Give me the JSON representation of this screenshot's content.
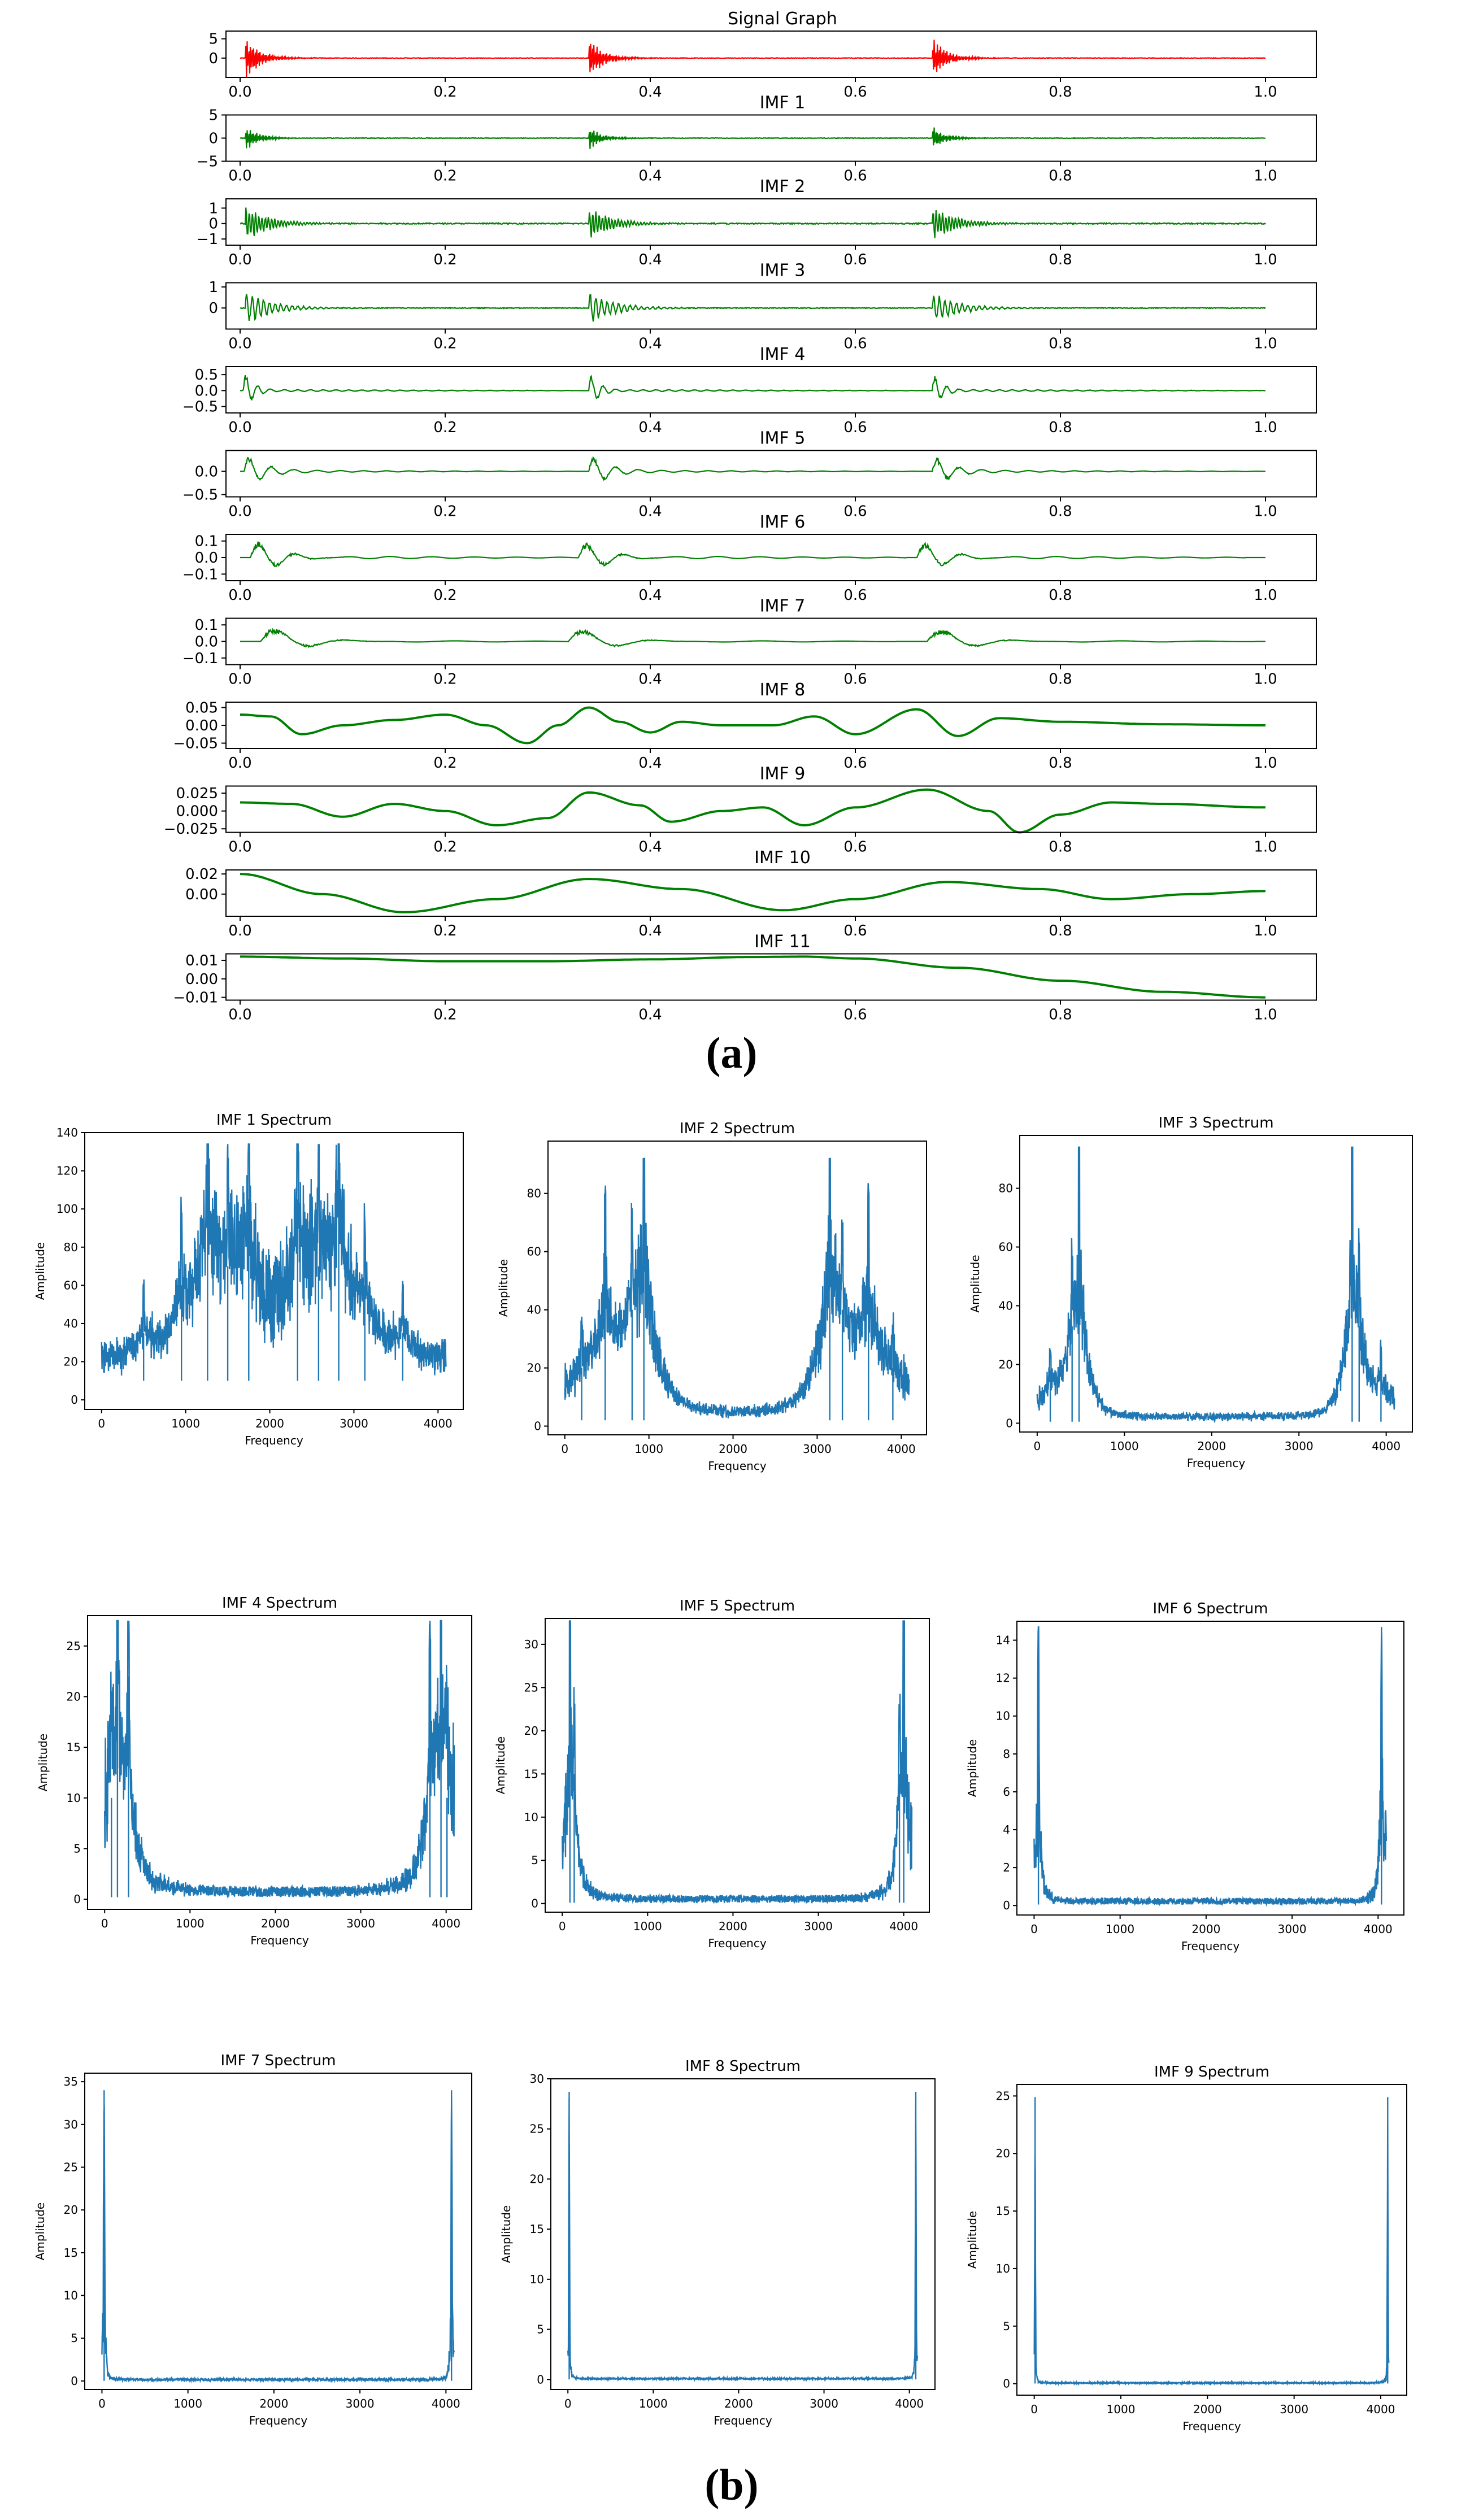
{
  "figure": {
    "caption_a": "(a)",
    "caption_b": "(b)"
  },
  "colors": {
    "signal": "#ff0000",
    "imf": "#008000",
    "spectrum": "#1f77b4",
    "axis": "#000000"
  },
  "chart_data": [
    {
      "type": "line",
      "title": "Signal Graph",
      "color": "signal",
      "xlim": [
        0.0,
        1.0
      ],
      "ylim": [
        -5,
        7
      ],
      "xticks": [
        "0.0",
        "0.2",
        "0.4",
        "0.6",
        "0.8",
        "1.0"
      ],
      "yticks": [
        {
          "v": 5,
          "l": "5"
        },
        {
          "v": 0,
          "l": "0"
        }
      ],
      "bursts": [
        0.005,
        0.34,
        0.675
      ],
      "peak": 6.5,
      "decay": 0.014,
      "freq": 640,
      "noise": 0.15
    },
    {
      "type": "line",
      "title": "IMF 1",
      "color": "imf",
      "xlim": [
        0.0,
        1.0
      ],
      "ylim": [
        -5,
        5
      ],
      "xticks": [
        "0.0",
        "0.2",
        "0.4",
        "0.6",
        "0.8",
        "1.0"
      ],
      "yticks": [
        {
          "v": 5,
          "l": "5"
        },
        {
          "v": 0,
          "l": "0"
        },
        {
          "v": -5,
          "l": "−5"
        }
      ],
      "bursts": [
        0.005,
        0.34,
        0.675
      ],
      "peak": 3.2,
      "decay": 0.012,
      "freq": 640,
      "noise": 0.12
    },
    {
      "type": "line",
      "title": "IMF 2",
      "color": "imf",
      "xlim": [
        0.0,
        1.0
      ],
      "ylim": [
        -1.4,
        1.6
      ],
      "xticks": [
        "0.0",
        "0.2",
        "0.4",
        "0.6",
        "0.8",
        "1.0"
      ],
      "yticks": [
        {
          "v": 1,
          "l": "1"
        },
        {
          "v": 0,
          "l": "0"
        },
        {
          "v": -1,
          "l": "−1"
        }
      ],
      "bursts": [
        0.005,
        0.34,
        0.675
      ],
      "peak": 1.3,
      "decay": 0.022,
      "freq": 320,
      "noise": 0.08
    },
    {
      "type": "line",
      "title": "IMF 3",
      "color": "imf",
      "xlim": [
        0.0,
        1.0
      ],
      "ylim": [
        -1.0,
        1.2
      ],
      "xticks": [
        "0.0",
        "0.2",
        "0.4",
        "0.6",
        "0.8",
        "1.0"
      ],
      "yticks": [
        {
          "v": 1,
          "l": "1"
        },
        {
          "v": 0,
          "l": "0"
        }
      ],
      "bursts": [
        0.005,
        0.34,
        0.675
      ],
      "peak": 0.9,
      "decay": 0.025,
      "freq": 180,
      "noise": 0.04
    },
    {
      "type": "line",
      "title": "IMF 4",
      "color": "imf",
      "xlim": [
        0.0,
        1.0
      ],
      "ylim": [
        -0.7,
        0.75
      ],
      "xticks": [
        "0.0",
        "0.2",
        "0.4",
        "0.6",
        "0.8",
        "1.0"
      ],
      "yticks": [
        {
          "v": 0.5,
          "l": "0.5"
        },
        {
          "v": 0.0,
          "l": "0.0"
        },
        {
          "v": -0.5,
          "l": "−0.5"
        }
      ],
      "bursts": [
        0.003,
        0.34,
        0.675
      ],
      "peak": 0.65,
      "decay": 0.01,
      "freq": 90,
      "noise": 0.01,
      "ripple": 0.04,
      "ripple_freq": 80
    },
    {
      "type": "line",
      "title": "IMF 5",
      "color": "imf",
      "xlim": [
        0.0,
        1.0
      ],
      "ylim": [
        -0.55,
        0.45
      ],
      "xticks": [
        "0.0",
        "0.2",
        "0.4",
        "0.6",
        "0.8",
        "1.0"
      ],
      "yticks": [
        {
          "v": 0.0,
          "l": "0.0"
        },
        {
          "v": -0.5,
          "l": "−0.5"
        }
      ],
      "bursts": [
        0.004,
        0.34,
        0.675
      ],
      "peak": 0.4,
      "decay": 0.018,
      "freq": 48,
      "noise": 0.0,
      "ripple": 0.03,
      "ripple_freq": 45
    },
    {
      "type": "line",
      "title": "IMF 6",
      "color": "imf",
      "xlim": [
        0.0,
        1.0
      ],
      "ylim": [
        -0.14,
        0.14
      ],
      "xticks": [
        "0.0",
        "0.2",
        "0.4",
        "0.6",
        "0.8",
        "1.0"
      ],
      "yticks": [
        {
          "v": 0.1,
          "l": "0.1"
        },
        {
          "v": 0.0,
          "l": "0.0"
        },
        {
          "v": -0.1,
          "l": "−0.1"
        }
      ],
      "bursts": [
        0.01,
        0.33,
        0.66
      ],
      "peak": 0.11,
      "decay": 0.03,
      "freq": 30,
      "noise": 0.0,
      "ripple": 0.015,
      "ripple_freq": 24
    },
    {
      "type": "line",
      "title": "IMF 7",
      "color": "imf",
      "xlim": [
        0.0,
        1.0
      ],
      "ylim": [
        -0.14,
        0.14
      ],
      "xticks": [
        "0.0",
        "0.2",
        "0.4",
        "0.6",
        "0.8",
        "1.0"
      ],
      "yticks": [
        {
          "v": 0.1,
          "l": "0.1"
        },
        {
          "v": 0.0,
          "l": "0.0"
        },
        {
          "v": -0.1,
          "l": "−0.1"
        }
      ],
      "bursts": [
        0.02,
        0.32,
        0.67
      ],
      "peak": 0.1,
      "decay": 0.04,
      "freq": 16,
      "noise": 0.0,
      "ripple": 0.012,
      "ripple_freq": 12
    },
    {
      "type": "line",
      "title": "IMF 8",
      "color": "imf",
      "xlim": [
        0.0,
        1.0
      ],
      "ylim": [
        -0.065,
        0.065
      ],
      "xticks": [
        "0.0",
        "0.2",
        "0.4",
        "0.6",
        "0.8",
        "1.0"
      ],
      "yticks": [
        {
          "v": 0.05,
          "l": "0.05"
        },
        {
          "v": 0.0,
          "l": "0.00"
        },
        {
          "v": -0.05,
          "l": "−0.05"
        }
      ],
      "points": [
        [
          0.0,
          0.03
        ],
        [
          0.03,
          0.025
        ],
        [
          0.06,
          -0.025
        ],
        [
          0.1,
          0.0
        ],
        [
          0.15,
          0.015
        ],
        [
          0.2,
          0.03
        ],
        [
          0.24,
          0.0
        ],
        [
          0.28,
          -0.05
        ],
        [
          0.31,
          0.0
        ],
        [
          0.34,
          0.05
        ],
        [
          0.37,
          0.01
        ],
        [
          0.4,
          -0.02
        ],
        [
          0.43,
          0.01
        ],
        [
          0.47,
          0.0
        ],
        [
          0.52,
          0.0
        ],
        [
          0.56,
          0.025
        ],
        [
          0.6,
          -0.025
        ],
        [
          0.66,
          0.045
        ],
        [
          0.7,
          -0.03
        ],
        [
          0.74,
          0.02
        ],
        [
          0.8,
          0.01
        ],
        [
          0.9,
          0.003
        ],
        [
          1.0,
          0.0
        ]
      ]
    },
    {
      "type": "line",
      "title": "IMF 9",
      "color": "imf",
      "xlim": [
        0.0,
        1.0
      ],
      "ylim": [
        -0.03,
        0.035
      ],
      "xticks": [
        "0.0",
        "0.2",
        "0.4",
        "0.6",
        "0.8",
        "1.0"
      ],
      "yticks": [
        {
          "v": 0.025,
          "l": "0.025"
        },
        {
          "v": 0.0,
          "l": "0.000"
        },
        {
          "v": -0.025,
          "l": "−0.025"
        }
      ],
      "points": [
        [
          0.0,
          0.012
        ],
        [
          0.05,
          0.01
        ],
        [
          0.1,
          -0.008
        ],
        [
          0.15,
          0.01
        ],
        [
          0.2,
          0.0
        ],
        [
          0.25,
          -0.02
        ],
        [
          0.3,
          -0.01
        ],
        [
          0.34,
          0.026
        ],
        [
          0.39,
          0.008
        ],
        [
          0.42,
          -0.015
        ],
        [
          0.47,
          0.0
        ],
        [
          0.51,
          0.005
        ],
        [
          0.55,
          -0.02
        ],
        [
          0.6,
          0.005
        ],
        [
          0.67,
          0.03
        ],
        [
          0.73,
          0.0
        ],
        [
          0.76,
          -0.03
        ],
        [
          0.8,
          -0.005
        ],
        [
          0.85,
          0.012
        ],
        [
          0.9,
          0.01
        ],
        [
          1.0,
          0.005
        ]
      ]
    },
    {
      "type": "line",
      "title": "IMF 10",
      "color": "imf",
      "xlim": [
        0.0,
        1.0
      ],
      "ylim": [
        -0.022,
        0.024
      ],
      "xticks": [
        "0.0",
        "0.2",
        "0.4",
        "0.6",
        "0.8",
        "1.0"
      ],
      "yticks": [
        {
          "v": 0.02,
          "l": "0.02"
        },
        {
          "v": 0.0,
          "l": "0.00"
        }
      ],
      "points": [
        [
          0.0,
          0.02
        ],
        [
          0.08,
          0.0
        ],
        [
          0.16,
          -0.018
        ],
        [
          0.25,
          -0.005
        ],
        [
          0.34,
          0.015
        ],
        [
          0.43,
          0.005
        ],
        [
          0.53,
          -0.016
        ],
        [
          0.6,
          -0.005
        ],
        [
          0.69,
          0.012
        ],
        [
          0.78,
          0.005
        ],
        [
          0.85,
          -0.005
        ],
        [
          0.93,
          0.0
        ],
        [
          1.0,
          0.003
        ]
      ]
    },
    {
      "type": "line",
      "title": "IMF 11",
      "color": "imf",
      "xlim": [
        0.0,
        1.0
      ],
      "ylim": [
        -0.0115,
        0.0135
      ],
      "xticks": [
        "0.0",
        "0.2",
        "0.4",
        "0.6",
        "0.8",
        "1.0"
      ],
      "yticks": [
        {
          "v": 0.01,
          "l": "0.01"
        },
        {
          "v": 0.0,
          "l": "0.00"
        },
        {
          "v": -0.01,
          "l": "−0.01"
        }
      ],
      "points": [
        [
          0.0,
          0.012
        ],
        [
          0.1,
          0.011
        ],
        [
          0.2,
          0.0095
        ],
        [
          0.3,
          0.0095
        ],
        [
          0.4,
          0.0105
        ],
        [
          0.5,
          0.0118
        ],
        [
          0.55,
          0.012
        ],
        [
          0.6,
          0.011
        ],
        [
          0.7,
          0.006
        ],
        [
          0.8,
          -0.001
        ],
        [
          0.9,
          -0.007
        ],
        [
          1.0,
          -0.01
        ]
      ]
    },
    {
      "type": "line",
      "title": "IMF 1 Spectrum",
      "xlabel": "Frequency",
      "ylabel": "Amplitude",
      "xlim": [
        -200,
        4300
      ],
      "ylim": [
        -5,
        140
      ],
      "xticks": [
        0,
        1000,
        2000,
        3000,
        4000
      ],
      "yticks": [
        0,
        20,
        40,
        60,
        80,
        100,
        120,
        140
      ],
      "base": 10,
      "peaks": [
        [
          1260,
          134
        ],
        [
          2820,
          134
        ],
        [
          1750,
          105
        ],
        [
          2330,
          105
        ],
        [
          1500,
          70
        ],
        [
          2580,
          70
        ],
        [
          950,
          60
        ],
        [
          3130,
          60
        ],
        [
          500,
          35
        ],
        [
          3580,
          35
        ]
      ],
      "peak_width": 300,
      "noise": 14
    },
    {
      "type": "line",
      "title": "IMF 2 Spectrum",
      "xlabel": "Frequency",
      "ylabel": "Amplitude",
      "xlim": [
        -200,
        4300
      ],
      "ylim": [
        -3,
        98
      ],
      "xticks": [
        0,
        1000,
        2000,
        3000,
        4000
      ],
      "yticks": [
        0,
        20,
        40,
        60,
        80
      ],
      "base": 2,
      "peaks": [
        [
          940,
          92
        ],
        [
          3150,
          92
        ],
        [
          480,
          68
        ],
        [
          3610,
          68
        ],
        [
          800,
          40
        ],
        [
          3300,
          40
        ],
        [
          200,
          20
        ],
        [
          3900,
          20
        ]
      ],
      "peak_width": 330,
      "noise": 10
    },
    {
      "type": "line",
      "title": "IMF 3 Spectrum",
      "xlabel": "Frequency",
      "ylabel": "Amplitude",
      "xlim": [
        -200,
        4300
      ],
      "ylim": [
        -3,
        98
      ],
      "xticks": [
        0,
        1000,
        2000,
        3000,
        4000
      ],
      "yticks": [
        0,
        20,
        40,
        60,
        80
      ],
      "base": 0.5,
      "peaks": [
        [
          480,
          94
        ],
        [
          3610,
          94
        ],
        [
          400,
          33
        ],
        [
          3690,
          33
        ],
        [
          150,
          18
        ],
        [
          3940,
          18
        ]
      ],
      "peak_width": 200,
      "noise": 6
    },
    {
      "type": "line",
      "title": "IMF 4 Spectrum",
      "xlabel": "Frequency",
      "ylabel": "Amplitude",
      "xlim": [
        -200,
        4300
      ],
      "ylim": [
        -1,
        28
      ],
      "xticks": [
        0,
        1000,
        2000,
        3000,
        4000
      ],
      "yticks": [
        0,
        5,
        10,
        15,
        20,
        25
      ],
      "base": 0.2,
      "peaks": [
        [
          150,
          27.5
        ],
        [
          3940,
          27.5
        ],
        [
          280,
          22
        ],
        [
          3810,
          22
        ],
        [
          80,
          10
        ],
        [
          4010,
          10
        ]
      ],
      "peak_width": 150,
      "noise": 3
    },
    {
      "type": "line",
      "title": "IMF 5 Spectrum",
      "xlabel": "Frequency",
      "ylabel": "Amplitude",
      "xlim": [
        -200,
        4300
      ],
      "ylim": [
        -1,
        33
      ],
      "xticks": [
        0,
        1000,
        2000,
        3000,
        4000
      ],
      "yticks": [
        0,
        5,
        10,
        15,
        20,
        25,
        30
      ],
      "base": 0.1,
      "peaks": [
        [
          90,
          32.7
        ],
        [
          4000,
          32.7
        ],
        [
          140,
          15
        ],
        [
          3950,
          15
        ]
      ],
      "peak_width": 90,
      "noise": 2.5
    },
    {
      "type": "line",
      "title": "IMF 6 Spectrum",
      "xlabel": "Frequency",
      "ylabel": "Amplitude",
      "xlim": [
        -200,
        4300
      ],
      "ylim": [
        -0.5,
        15
      ],
      "xticks": [
        0,
        1000,
        2000,
        3000,
        4000
      ],
      "yticks": [
        0,
        2,
        4,
        6,
        8,
        10,
        12,
        14
      ],
      "base": 0.05,
      "peaks": [
        [
          50,
          14.7
        ],
        [
          4040,
          14.7
        ]
      ],
      "peak_width": 45,
      "noise": 1
    },
    {
      "type": "line",
      "title": "IMF 7 Spectrum",
      "xlabel": "Frequency",
      "ylabel": "Amplitude",
      "xlim": [
        -200,
        4300
      ],
      "ylim": [
        -1,
        36
      ],
      "xticks": [
        0,
        1000,
        2000,
        3000,
        4000
      ],
      "yticks": [
        0,
        5,
        10,
        15,
        20,
        25,
        30,
        35
      ],
      "base": 0.02,
      "peaks": [
        [
          25,
          34
        ],
        [
          4065,
          34
        ]
      ],
      "peak_width": 25,
      "noise": 0.8
    },
    {
      "type": "line",
      "title": "IMF 8 Spectrum",
      "xlabel": "Frequency",
      "ylabel": "Amplitude",
      "xlim": [
        -200,
        4300
      ],
      "ylim": [
        -1,
        30
      ],
      "xticks": [
        0,
        1000,
        2000,
        3000,
        4000
      ],
      "yticks": [
        0,
        5,
        10,
        15,
        20,
        25,
        30
      ],
      "base": 0.01,
      "peaks": [
        [
          15,
          28.7
        ],
        [
          4075,
          28.7
        ]
      ],
      "peak_width": 14,
      "noise": 0.4
    },
    {
      "type": "line",
      "title": "IMF 9 Spectrum",
      "xlabel": "Frequency",
      "ylabel": "Amplitude",
      "xlim": [
        -200,
        4300
      ],
      "ylim": [
        -1,
        26
      ],
      "xticks": [
        0,
        1000,
        2000,
        3000,
        4000
      ],
      "yticks": [
        0,
        5,
        10,
        15,
        20,
        25
      ],
      "base": 0.01,
      "peaks": [
        [
          10,
          24.9
        ],
        [
          4080,
          24.9
        ]
      ],
      "peak_width": 10,
      "noise": 0.3
    }
  ]
}
